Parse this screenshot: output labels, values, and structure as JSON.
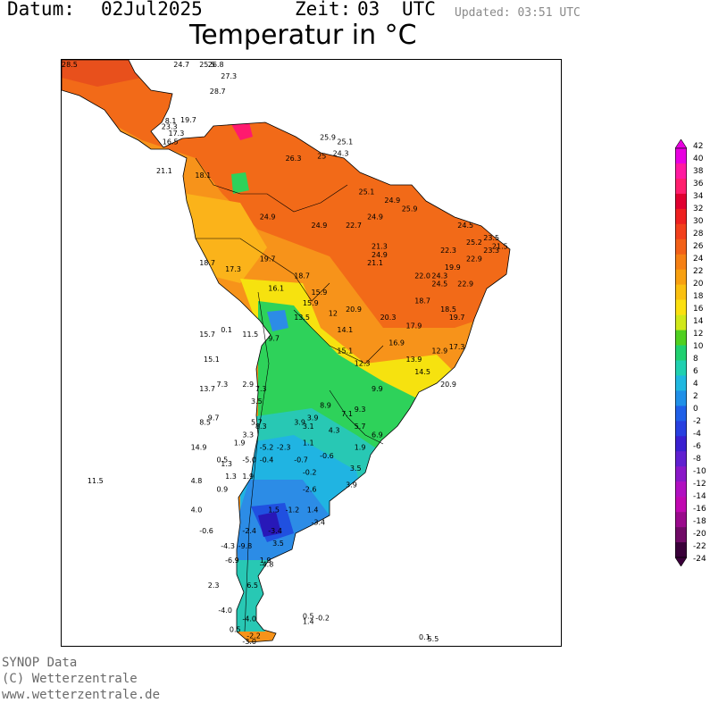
{
  "header": {
    "date_label": "Datum:",
    "date_value": "02Jul2025",
    "time_label": "Zeit:",
    "time_value": "03",
    "time_zone": "UTC",
    "updated": "Updated: 03:51 UTC"
  },
  "title": "Temperatur in °C",
  "footer": {
    "line1": "SYNOP Data",
    "line2": "(C) Wetterzentrale",
    "line3": "www.wetterzentrale.de"
  },
  "legend": {
    "ticks": [
      "42",
      "40",
      "38",
      "36",
      "34",
      "32",
      "30",
      "28",
      "26",
      "24",
      "22",
      "20",
      "18",
      "16",
      "14",
      "12",
      "10",
      "8",
      "6",
      "4",
      "2",
      "0",
      "-2",
      "-4",
      "-6",
      "-8",
      "-10",
      "-12",
      "-14",
      "-16",
      "-18",
      "-20",
      "-22",
      "-24"
    ],
    "colors": [
      "#e800e0",
      "#ff1aa0",
      "#ff1f6e",
      "#e00030",
      "#ee2020",
      "#f2401c",
      "#f26018",
      "#f58014",
      "#f8a010",
      "#fac010",
      "#fbe010",
      "#d0e81a",
      "#50d020",
      "#20d070",
      "#20d0b0",
      "#20b8e0",
      "#2090e8",
      "#2060e8",
      "#2840e0",
      "#3a20d0",
      "#6020d0",
      "#8a18c8",
      "#b010c0",
      "#c008b0",
      "#9a0a8c",
      "#700a66",
      "#3a003a"
    ]
  },
  "map": {
    "colors": {
      "hot": "#e8501c",
      "warm": "#f26a18",
      "orange": "#f7931a",
      "yellow_orange": "#fbb31a",
      "yellow": "#f6e20f",
      "green_yellow": "#9fe02a",
      "green": "#2ed25a",
      "teal": "#28c8b4",
      "cyan": "#20b4e2",
      "light_blue": "#2c8ce6",
      "blue": "#2050e0",
      "violet": "#2818b8",
      "magenta": "#ff1a6e",
      "border": "#000000"
    },
    "labels": [
      {
        "t": "28.5",
        "x": -92,
        "y": 15
      },
      {
        "t": "24.7",
        "x": -79,
        "y": 20
      },
      {
        "t": "25.5",
        "x": -76,
        "y": 18
      },
      {
        "t": "26.8",
        "x": -75,
        "y": 16.5
      },
      {
        "t": "27.3",
        "x": -73.5,
        "y": 12.8
      },
      {
        "t": "28.7",
        "x": -74.8,
        "y": 11
      },
      {
        "t": "19.7",
        "x": -78.2,
        "y": 7.6
      },
      {
        "t": "8.1",
        "x": -80,
        "y": 7.5
      },
      {
        "t": "23.3",
        "x": -80.4,
        "y": 6.8
      },
      {
        "t": "17.3",
        "x": -79.6,
        "y": 6
      },
      {
        "t": "16.5",
        "x": -80.3,
        "y": 5
      },
      {
        "t": "25.9",
        "x": -62,
        "y": 5.5
      },
      {
        "t": "25.1",
        "x": -60,
        "y": 5
      },
      {
        "t": "26.3",
        "x": -66,
        "y": 3
      },
      {
        "t": "25",
        "x": -62.3,
        "y": 3.3
      },
      {
        "t": "24.3",
        "x": -60.5,
        "y": 3.6
      },
      {
        "t": "21.1",
        "x": -81,
        "y": 1.5
      },
      {
        "t": "18.1",
        "x": -76.5,
        "y": 1
      },
      {
        "t": "25.1",
        "x": -57.5,
        "y": -1
      },
      {
        "t": "24.9",
        "x": -54.5,
        "y": -2
      },
      {
        "t": "25.9",
        "x": -52.5,
        "y": -3
      },
      {
        "t": "24.9",
        "x": -69,
        "y": -4
      },
      {
        "t": "24.9",
        "x": -63,
        "y": -5
      },
      {
        "t": "24.9",
        "x": -56.5,
        "y": -4
      },
      {
        "t": "22.7",
        "x": -59,
        "y": -5
      },
      {
        "t": "24.5",
        "x": -46,
        "y": -5
      },
      {
        "t": "23.5",
        "x": -43,
        "y": -6.5
      },
      {
        "t": "21.3",
        "x": -56,
        "y": -7.5
      },
      {
        "t": "24.9",
        "x": -56,
        "y": -8.5
      },
      {
        "t": "21.1",
        "x": -56.5,
        "y": -9.5
      },
      {
        "t": "19.7",
        "x": -69,
        "y": -9
      },
      {
        "t": "18.7",
        "x": -76,
        "y": -9.5
      },
      {
        "t": "17.3",
        "x": -73,
        "y": -10.2
      },
      {
        "t": "18.7",
        "x": -65,
        "y": -11
      },
      {
        "t": "16.1",
        "x": -68,
        "y": -12.5
      },
      {
        "t": "15.9",
        "x": -63,
        "y": -13
      },
      {
        "t": "15.9",
        "x": -64,
        "y": -14.3
      },
      {
        "t": "20.9",
        "x": -59,
        "y": -15
      },
      {
        "t": "18.7",
        "x": -51,
        "y": -14
      },
      {
        "t": "13.5",
        "x": -65,
        "y": -16
      },
      {
        "t": "12",
        "x": -61,
        "y": -15.5
      },
      {
        "t": "11.5",
        "x": -71,
        "y": -18
      },
      {
        "t": "9.7",
        "x": -68,
        "y": -18.5
      },
      {
        "t": "0.1",
        "x": -73.5,
        "y": -17.5
      },
      {
        "t": "15.7",
        "x": -76,
        "y": -18
      },
      {
        "t": "15.1",
        "x": -75.5,
        "y": -21
      },
      {
        "t": "13.7",
        "x": -76,
        "y": -24.5
      },
      {
        "t": "7.3",
        "x": -74,
        "y": -24
      },
      {
        "t": "2.9",
        "x": -71,
        "y": -24
      },
      {
        "t": "7.3",
        "x": -69.5,
        "y": -24.5
      },
      {
        "t": "3.5",
        "x": -70,
        "y": -26
      },
      {
        "t": "9.7",
        "x": -75,
        "y": -28
      },
      {
        "t": "8.5",
        "x": -76,
        "y": -28.5
      },
      {
        "t": "5.7",
        "x": -70,
        "y": -28.5
      },
      {
        "t": "8.3",
        "x": -69.5,
        "y": -29
      },
      {
        "t": "3.3",
        "x": -71,
        "y": -30
      },
      {
        "t": "3.9",
        "x": -65,
        "y": -28.5
      },
      {
        "t": "3.9",
        "x": -63.5,
        "y": -28
      },
      {
        "t": "3.1",
        "x": -64,
        "y": -29
      },
      {
        "t": "1.9",
        "x": -72,
        "y": -31
      },
      {
        "t": "14.9",
        "x": -77,
        "y": -31.5
      },
      {
        "t": "-5.2",
        "x": -69,
        "y": -31.5
      },
      {
        "t": "-2.3",
        "x": -67,
        "y": -31.5
      },
      {
        "t": "1.1",
        "x": -64,
        "y": -31
      },
      {
        "t": "0.5",
        "x": -74,
        "y": -33
      },
      {
        "t": "1.3",
        "x": -73.5,
        "y": -33.5
      },
      {
        "t": "-5.0",
        "x": -71,
        "y": -33
      },
      {
        "t": "-0.4",
        "x": -69,
        "y": -33
      },
      {
        "t": "-0.7",
        "x": -65,
        "y": -33
      },
      {
        "t": "-0.6",
        "x": -62,
        "y": -32.5
      },
      {
        "t": "-0.2",
        "x": -64,
        "y": -34.5
      },
      {
        "t": "1.9",
        "x": -71,
        "y": -35
      },
      {
        "t": "1.3",
        "x": -73,
        "y": -35
      },
      {
        "t": "4.8",
        "x": -77,
        "y": -35.5
      },
      {
        "t": "0.9",
        "x": -74,
        "y": -36.5
      },
      {
        "t": "-2.6",
        "x": -64,
        "y": -36.5
      },
      {
        "t": "11.5",
        "x": -89,
        "y": -35.5
      },
      {
        "t": "4.0",
        "x": -77,
        "y": -39
      },
      {
        "t": "1.5",
        "x": -68,
        "y": -39
      },
      {
        "t": "-1.2",
        "x": -66,
        "y": -39
      },
      {
        "t": "1.4",
        "x": -63.5,
        "y": -39
      },
      {
        "t": "-3.4",
        "x": -63,
        "y": -40.5
      },
      {
        "t": "-3.4",
        "x": -68,
        "y": -41.5
      },
      {
        "t": "-0.6",
        "x": -76,
        "y": -41.5
      },
      {
        "t": "-2.4",
        "x": -71,
        "y": -41.5
      },
      {
        "t": "-4.3",
        "x": -73.5,
        "y": -43.3
      },
      {
        "t": "-9.8",
        "x": -71.5,
        "y": -43.3
      },
      {
        "t": "3.5",
        "x": -67.5,
        "y": -43
      },
      {
        "t": "-6.9",
        "x": -73,
        "y": -45
      },
      {
        "t": "1.9",
        "x": -69,
        "y": -45
      },
      {
        "t": "-4.8",
        "x": -69,
        "y": -45.5
      },
      {
        "t": "6.5",
        "x": -70.5,
        "y": -48
      },
      {
        "t": "2.3",
        "x": -75,
        "y": -48
      },
      {
        "t": "-4.0",
        "x": -73.8,
        "y": -51
      },
      {
        "t": "-4.0",
        "x": -71,
        "y": -52
      },
      {
        "t": "0.5",
        "x": -64,
        "y": -51.7
      },
      {
        "t": "-0.2",
        "x": -62.5,
        "y": -51.9
      },
      {
        "t": "1.4",
        "x": -64,
        "y": -52.3
      },
      {
        "t": "0.5",
        "x": -72.5,
        "y": -53.3
      },
      {
        "t": "-2.2",
        "x": -70.5,
        "y": -54
      },
      {
        "t": "-3.0",
        "x": -71,
        "y": -54.7
      },
      {
        "t": "0.1",
        "x": -50.5,
        "y": -54.2
      },
      {
        "t": "5.5",
        "x": -49.5,
        "y": -54.4
      },
      {
        "t": "9.3",
        "x": -58,
        "y": -27
      },
      {
        "t": "7.1",
        "x": -59.5,
        "y": -27.5
      },
      {
        "t": "6.9",
        "x": -56,
        "y": -30
      },
      {
        "t": "5.7",
        "x": -58,
        "y": -29
      },
      {
        "t": "8.9",
        "x": -62,
        "y": -26.5
      },
      {
        "t": "4.3",
        "x": -61,
        "y": -29.5
      },
      {
        "t": "1.9",
        "x": -58,
        "y": -31.5
      },
      {
        "t": "3.5",
        "x": -58.5,
        "y": -34
      },
      {
        "t": "3.9",
        "x": -59,
        "y": -36
      },
      {
        "t": "14.1",
        "x": -60,
        "y": -17.5
      },
      {
        "t": "15.1",
        "x": -60,
        "y": -20
      },
      {
        "t": "12.3",
        "x": -58,
        "y": -21.5
      },
      {
        "t": "9.9",
        "x": -56,
        "y": -24.5
      },
      {
        "t": "20.3",
        "x": -55,
        "y": -16
      },
      {
        "t": "17.9",
        "x": -52,
        "y": -17
      },
      {
        "t": "16.9",
        "x": -54,
        "y": -19
      },
      {
        "t": "13.9",
        "x": -52,
        "y": -21
      },
      {
        "t": "12.9",
        "x": -49,
        "y": -20
      },
      {
        "t": "17.3",
        "x": -47,
        "y": -19.5
      },
      {
        "t": "14.5",
        "x": -51,
        "y": -22.5
      },
      {
        "t": "20.9",
        "x": -48,
        "y": -24
      },
      {
        "t": "19.7",
        "x": -47,
        "y": -16
      },
      {
        "t": "18.5",
        "x": -48,
        "y": -15
      },
      {
        "t": "22.9",
        "x": -46,
        "y": -12
      },
      {
        "t": "24.5",
        "x": -49,
        "y": -12
      },
      {
        "t": "22.0",
        "x": -51,
        "y": -11
      },
      {
        "t": "24.3",
        "x": -49,
        "y": -11
      },
      {
        "t": "22.3",
        "x": -48,
        "y": -8
      },
      {
        "t": "19.9",
        "x": -47.5,
        "y": -10
      },
      {
        "t": "22.9",
        "x": -45,
        "y": -9
      },
      {
        "t": "23.3",
        "x": -43,
        "y": -8
      },
      {
        "t": "25.2",
        "x": -45,
        "y": -7
      },
      {
        "t": "21.5",
        "x": -42,
        "y": -7.5
      }
    ]
  }
}
